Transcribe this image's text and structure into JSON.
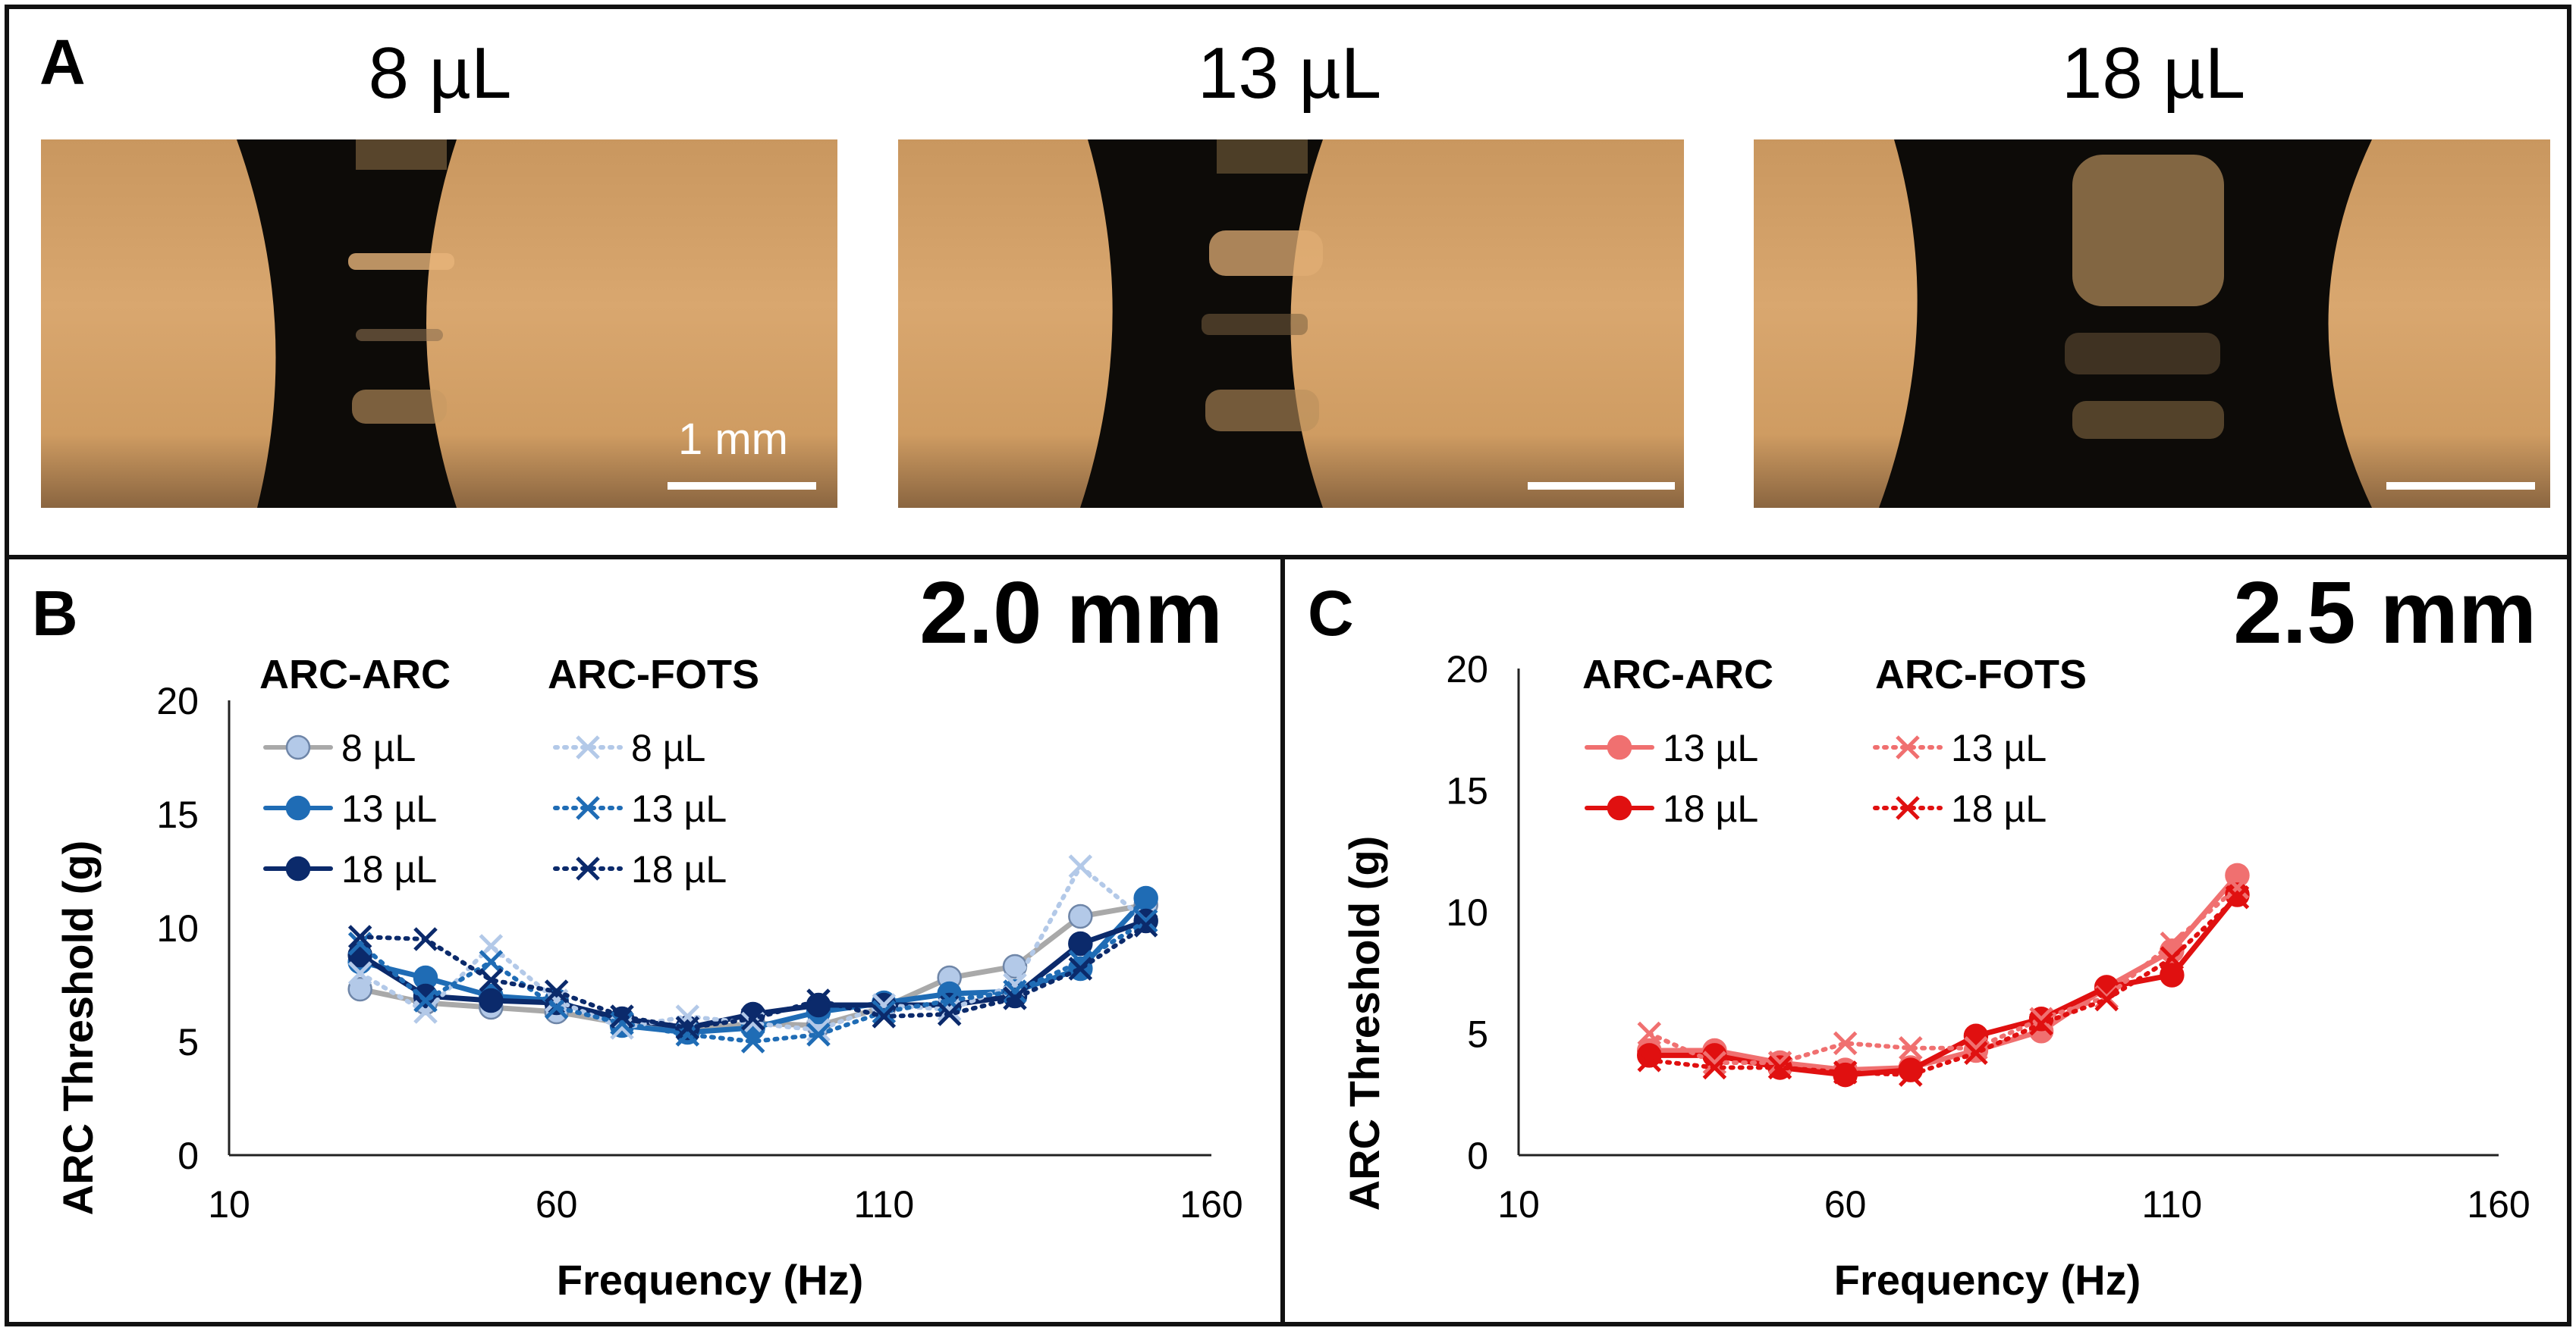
{
  "panel_a": {
    "letter": "A",
    "photos": [
      {
        "volume_label": "8 µL",
        "scale_text": "1 mm"
      },
      {
        "volume_label": "13 µL",
        "scale_text": ""
      },
      {
        "volume_label": "18 µL",
        "scale_text": ""
      }
    ]
  },
  "chart_data": [
    {
      "type": "line",
      "panel": "B",
      "title": "2.0 mm",
      "xlabel": "Frequency (Hz)",
      "ylabel": "ARC Threshold (g)",
      "xlim": [
        10,
        160
      ],
      "ylim": [
        0,
        20
      ],
      "xticks": [
        "10",
        "60",
        "110",
        "160"
      ],
      "yticks": [
        "0",
        "5",
        "10",
        "15",
        "20"
      ],
      "legend_group_titles": [
        "ARC-ARC",
        "ARC-FOTS"
      ],
      "colors": {
        "8": "#b3c9e8",
        "13": "#1f6cb5",
        "18": "#0b2a6b",
        "line8": "#a9a9a9"
      },
      "series": [
        {
          "name": "8 µL",
          "group": "ARC-ARC",
          "style": "solid",
          "marker": "circle",
          "color": "#b3c9e8",
          "x": [
            30,
            40,
            50,
            60,
            70,
            80,
            90,
            100,
            110,
            120,
            130,
            140,
            150
          ],
          "y": [
            7.3,
            6.7,
            6.5,
            6.3,
            5.8,
            5.5,
            5.8,
            5.7,
            6.5,
            7.8,
            8.3,
            10.5,
            11.0
          ]
        },
        {
          "name": "13 µL",
          "group": "ARC-ARC",
          "style": "solid",
          "marker": "circle",
          "color": "#1f6cb5",
          "x": [
            30,
            40,
            50,
            60,
            70,
            80,
            90,
            100,
            110,
            120,
            130,
            140,
            150
          ],
          "y": [
            8.5,
            7.8,
            7.0,
            6.8,
            5.7,
            5.4,
            5.6,
            6.3,
            6.7,
            7.1,
            7.2,
            8.2,
            11.3
          ]
        },
        {
          "name": "18 µL",
          "group": "ARC-ARC",
          "style": "solid",
          "marker": "circle",
          "color": "#0b2a6b",
          "x": [
            30,
            40,
            50,
            60,
            70,
            80,
            90,
            100,
            110,
            120,
            130,
            140,
            150
          ],
          "y": [
            8.8,
            7.0,
            6.8,
            6.7,
            6.0,
            5.6,
            6.2,
            6.6,
            6.6,
            6.6,
            7.0,
            9.3,
            10.3
          ]
        },
        {
          "name": "8 µL",
          "group": "ARC-FOTS",
          "style": "dotted",
          "marker": "x",
          "color": "#b3c9e8",
          "x": [
            30,
            40,
            50,
            60,
            70,
            80,
            90,
            100,
            110,
            120,
            130,
            140,
            150
          ],
          "y": [
            8.0,
            6.3,
            9.2,
            6.8,
            5.6,
            6.1,
            5.8,
            5.5,
            6.6,
            6.4,
            7.5,
            12.7,
            10.3
          ]
        },
        {
          "name": "13 µL",
          "group": "ARC-FOTS",
          "style": "dotted",
          "marker": "x",
          "color": "#1f6cb5",
          "x": [
            30,
            40,
            50,
            60,
            70,
            80,
            90,
            100,
            110,
            120,
            130,
            140,
            150
          ],
          "y": [
            9.3,
            6.8,
            8.5,
            6.5,
            5.8,
            5.3,
            5.0,
            5.3,
            6.3,
            6.8,
            7.2,
            8.5,
            10.3
          ]
        },
        {
          "name": "18 µL",
          "group": "ARC-FOTS",
          "style": "dotted",
          "marker": "x",
          "color": "#0b2a6b",
          "x": [
            30,
            40,
            50,
            60,
            70,
            80,
            90,
            100,
            110,
            120,
            130,
            140,
            150
          ],
          "y": [
            9.6,
            9.5,
            7.7,
            7.2,
            6.1,
            5.6,
            6.0,
            6.8,
            6.1,
            6.2,
            6.9,
            8.2,
            10.1
          ]
        }
      ]
    },
    {
      "type": "line",
      "panel": "C",
      "title": "2.5 mm",
      "xlabel": "Frequency (Hz)",
      "ylabel": "ARC Threshold (g)",
      "xlim": [
        10,
        160
      ],
      "ylim": [
        0,
        20
      ],
      "xticks": [
        "10",
        "60",
        "110",
        "160"
      ],
      "yticks": [
        "0",
        "5",
        "10",
        "15",
        "20"
      ],
      "legend_group_titles": [
        "ARC-ARC",
        "ARC-FOTS"
      ],
      "colors": {
        "13": "#f07070",
        "18": "#e01010"
      },
      "series": [
        {
          "name": "13 µL",
          "group": "ARC-ARC",
          "style": "solid",
          "marker": "circle",
          "color": "#f07070",
          "x": [
            30,
            40,
            50,
            60,
            70,
            80,
            90,
            100,
            110,
            120
          ],
          "y": [
            4.3,
            4.3,
            3.8,
            3.5,
            3.6,
            4.3,
            5.1,
            6.9,
            8.4,
            11.5
          ]
        },
        {
          "name": "18 µL",
          "group": "ARC-ARC",
          "style": "solid",
          "marker": "circle",
          "color": "#e01010",
          "x": [
            30,
            40,
            50,
            60,
            70,
            80,
            90,
            100,
            110,
            120
          ],
          "y": [
            4.1,
            4.1,
            3.6,
            3.3,
            3.5,
            4.9,
            5.6,
            6.9,
            7.4,
            10.7
          ]
        },
        {
          "name": "13 µL",
          "group": "ARC-FOTS",
          "style": "dotted",
          "marker": "x",
          "color": "#f07070",
          "x": [
            30,
            40,
            50,
            60,
            70,
            80,
            90,
            100,
            110,
            120
          ],
          "y": [
            5.0,
            3.8,
            3.8,
            4.6,
            4.4,
            4.4,
            5.6,
            6.5,
            8.7,
            11.0
          ]
        },
        {
          "name": "18 µL",
          "group": "ARC-FOTS",
          "style": "dotted",
          "marker": "x",
          "color": "#e01010",
          "x": [
            30,
            40,
            50,
            60,
            70,
            80,
            90,
            100,
            110,
            120
          ],
          "y": [
            3.9,
            3.6,
            3.6,
            3.4,
            3.3,
            4.2,
            5.4,
            6.4,
            8.1,
            10.6
          ]
        }
      ]
    }
  ]
}
